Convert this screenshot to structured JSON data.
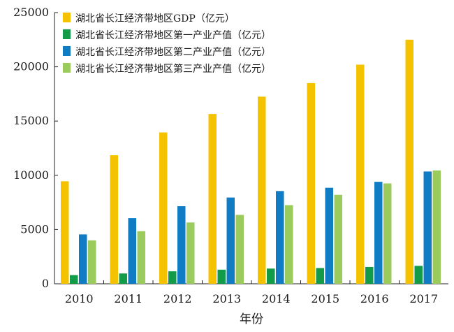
{
  "chart_data": {
    "type": "bar",
    "categories": [
      "2010",
      "2011",
      "2012",
      "2013",
      "2014",
      "2015",
      "2016",
      "2017"
    ],
    "series": [
      {
        "name": "湖北省长江经济带地区GDP（亿元）",
        "color": "#f5c200",
        "values": [
          9450,
          11850,
          13950,
          15650,
          17250,
          18500,
          20200,
          22500
        ]
      },
      {
        "name": "湖北省长江经济带地区第一产业产值（亿元）",
        "color": "#129c4a",
        "values": [
          800,
          950,
          1150,
          1300,
          1400,
          1450,
          1550,
          1650
        ]
      },
      {
        "name": "湖北省长江经济带地区第二产业产值（亿元）",
        "color": "#0f7cc4",
        "values": [
          4550,
          6050,
          7150,
          7950,
          8550,
          8850,
          9400,
          10350
        ]
      },
      {
        "name": "湖北省长江经济带地区第三产业产值（亿元）",
        "color": "#9bcb5c",
        "values": [
          4000,
          4850,
          5650,
          6350,
          7250,
          8200,
          9250,
          10450
        ]
      }
    ],
    "title": "",
    "xlabel": "年份",
    "ylabel": "",
    "ylim": [
      0,
      25000
    ],
    "yticks": [
      "0",
      "5000",
      "10000",
      "15000",
      "20000",
      "25000"
    ],
    "grid": false,
    "legend_position": "top-left"
  }
}
